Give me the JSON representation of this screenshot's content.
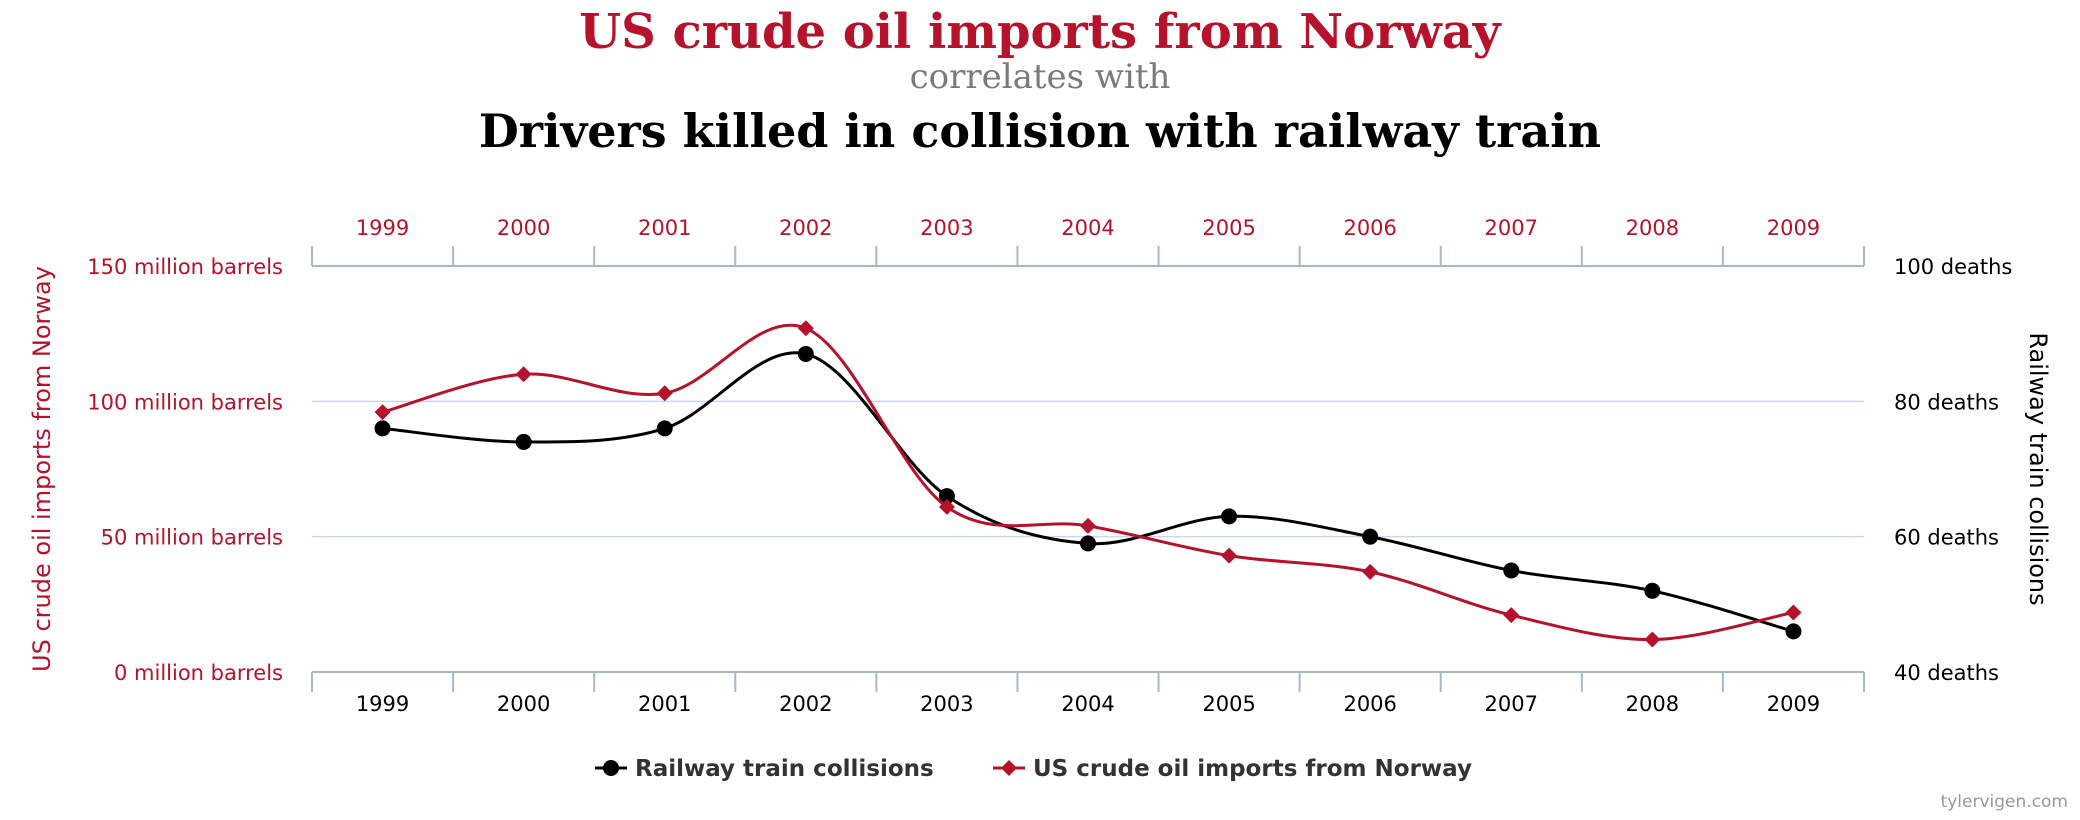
{
  "header": {
    "title_primary": "US crude oil imports from Norway",
    "connector": "correlates with",
    "title_secondary": "Drivers killed in collision with railway train"
  },
  "colors": {
    "red": "#b5122b",
    "black": "#000000",
    "grey_text": "#7a7a7a",
    "grid": "#ccd6eb",
    "axis": "#a7b8cc",
    "legend_text": "#333333",
    "credit": "#999999"
  },
  "chart_data": {
    "type": "line",
    "x": [
      "1999",
      "2000",
      "2001",
      "2002",
      "2003",
      "2004",
      "2005",
      "2006",
      "2007",
      "2008",
      "2009"
    ],
    "series": [
      {
        "name": "Railway train collisions",
        "axis": "right",
        "marker": "circle",
        "values": [
          76,
          74,
          76,
          87,
          66,
          59,
          63,
          60,
          55,
          52,
          46
        ]
      },
      {
        "name": "US crude oil imports from Norway",
        "axis": "left",
        "marker": "diamond",
        "values": [
          96,
          110,
          103,
          127,
          61,
          54,
          43,
          37,
          21,
          12,
          22
        ]
      }
    ],
    "left_axis": {
      "label": "US crude oil imports from Norway",
      "range": [
        0,
        150
      ],
      "ticks": [
        {
          "value": 0,
          "label": "0 million barrels"
        },
        {
          "value": 50,
          "label": "50 million barrels"
        },
        {
          "value": 100,
          "label": "100 million barrels"
        },
        {
          "value": 150,
          "label": "150 million barrels"
        }
      ]
    },
    "right_axis": {
      "label": "Railway train collisions",
      "range": [
        40,
        100
      ],
      "ticks": [
        {
          "value": 40,
          "label": "40 deaths"
        },
        {
          "value": 60,
          "label": "60 deaths"
        },
        {
          "value": 80,
          "label": "80 deaths"
        },
        {
          "value": 100,
          "label": "100 deaths"
        }
      ]
    },
    "legend": [
      "Railway train collisions",
      "US crude oil imports from Norway"
    ],
    "legend_position": "bottom-center",
    "grid": true
  },
  "credit": "tylervigen.com"
}
